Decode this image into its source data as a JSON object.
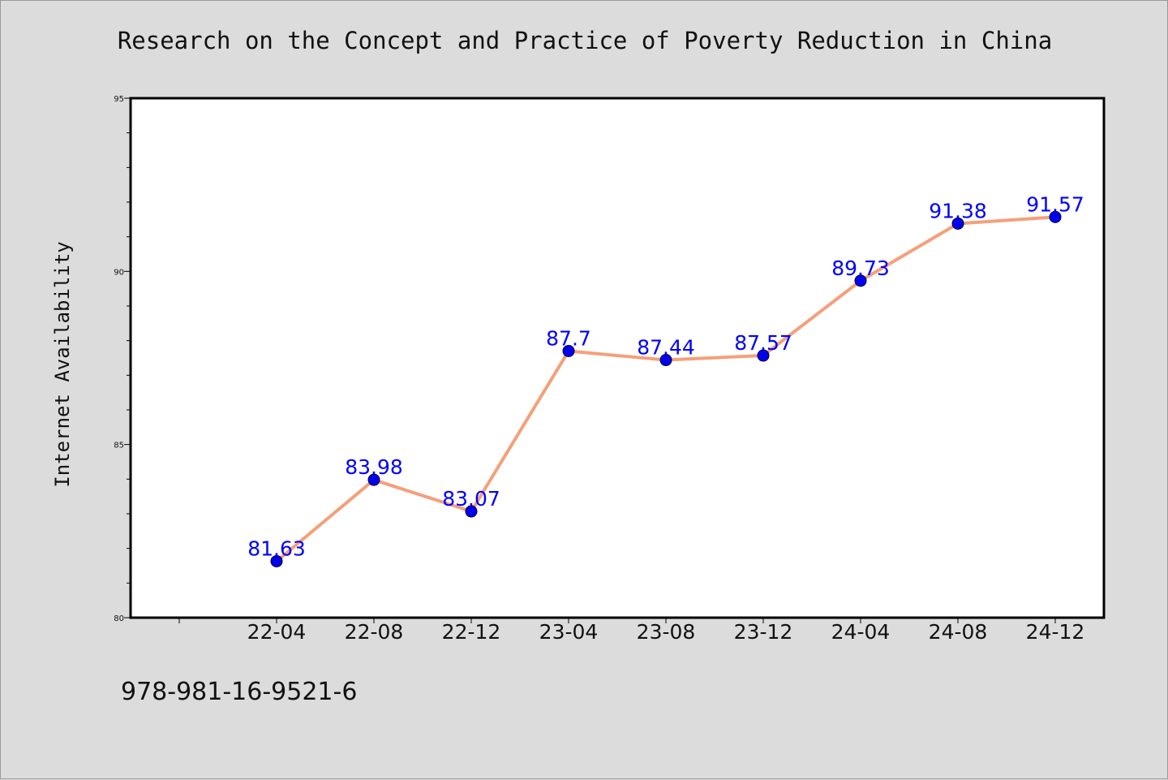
{
  "chart_data": {
    "type": "line",
    "title": "Research on the Concept and Practice of Poverty Reduction in China",
    "xlabel": "",
    "ylabel": "Internet Availability",
    "categories": [
      "22-04",
      "22-08",
      "22-12",
      "23-04",
      "23-08",
      "23-12",
      "24-04",
      "24-08",
      "24-12"
    ],
    "series": [
      {
        "values": [
          81.63,
          83.98,
          83.07,
          87.7,
          87.44,
          87.57,
          89.73,
          91.38,
          91.57
        ],
        "labels": [
          "81.63",
          "83.98",
          "83.07",
          "87.7",
          "87.44",
          "87.57",
          "89.73",
          "91.38",
          "91.57"
        ],
        "line_color": "#f4a07a",
        "marker_color": "#0000ee",
        "label_color": "#0000ff"
      }
    ],
    "ylim": [
      80,
      95
    ],
    "yticks": [
      "80",
      "85",
      "90",
      "95"
    ],
    "grid": false,
    "legend": "none"
  },
  "footer": {
    "isbn": "978-981-16-9521-6"
  }
}
